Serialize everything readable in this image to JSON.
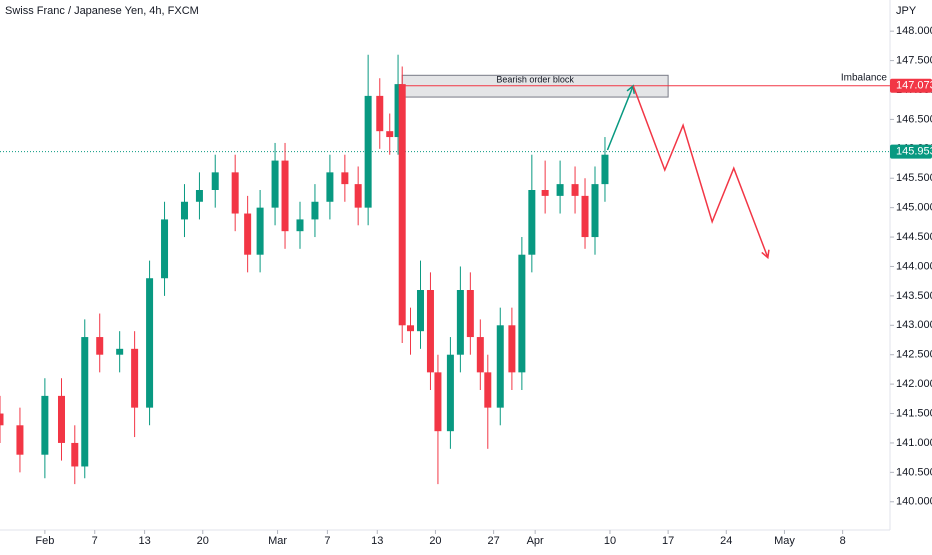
{
  "chart_data": {
    "type": "candlestick",
    "title": "Swiss Franc / Japanese Yen, 4h, FXCM",
    "y_unit": "JPY",
    "x": [
      26.6,
      29,
      32,
      34,
      35.6,
      36.8,
      38.6,
      41,
      42.8,
      44.6,
      46.4,
      48.8,
      50.6,
      52.5,
      54.9,
      56.4,
      57.9,
      59.7,
      60.9,
      62.7,
      64.5,
      66.3,
      68.1,
      69.7,
      70.9,
      72.3,
      73.5,
      74.5,
      75,
      76,
      77.2,
      78.4,
      79.3,
      80.8,
      82,
      83.2,
      84.4,
      85.3,
      86.8,
      88.2,
      89.4,
      90.6,
      92.2,
      94,
      95.8,
      97,
      98.2,
      99.4
    ],
    "open": [
      141.5,
      141.3,
      140.8,
      141.8,
      141.0,
      140.6,
      142.8,
      142.5,
      142.6,
      141.6,
      143.8,
      144.8,
      145.1,
      145.3,
      145.6,
      144.9,
      144.2,
      145.0,
      145.8,
      144.6,
      144.8,
      145.1,
      145.6,
      145.4,
      145.0,
      146.9,
      146.3,
      146.2,
      147.1,
      143.0,
      142.9,
      143.6,
      142.2,
      141.2,
      142.5,
      143.6,
      142.8,
      142.2,
      141.6,
      143.0,
      142.2,
      144.2,
      145.3,
      145.2,
      145.4,
      145.2,
      144.5,
      145.4
    ],
    "high": [
      141.8,
      141.6,
      142.1,
      142.1,
      141.3,
      143.1,
      143.2,
      142.9,
      142.9,
      144.1,
      145.1,
      145.4,
      145.6,
      145.9,
      145.9,
      145.2,
      145.3,
      146.1,
      146.1,
      145.1,
      145.4,
      145.9,
      145.9,
      145.7,
      147.6,
      147.2,
      146.6,
      147.6,
      147.4,
      143.3,
      144.1,
      143.9,
      142.5,
      142.8,
      144.0,
      143.9,
      143.1,
      142.5,
      143.3,
      143.3,
      144.5,
      145.9,
      145.8,
      145.8,
      145.7,
      145.5,
      145.7,
      146.2
    ],
    "low": [
      141.0,
      140.5,
      140.4,
      140.7,
      140.3,
      140.4,
      142.2,
      142.2,
      141.1,
      141.3,
      143.5,
      144.5,
      144.8,
      145.0,
      144.6,
      143.9,
      143.9,
      144.7,
      144.3,
      144.3,
      144.5,
      144.8,
      145.1,
      144.7,
      144.7,
      146.0,
      145.9,
      145.9,
      142.7,
      142.5,
      142.6,
      141.9,
      140.3,
      140.9,
      142.2,
      142.5,
      141.9,
      140.9,
      141.3,
      141.9,
      141.9,
      143.9,
      144.9,
      144.9,
      144.9,
      144.3,
      144.2,
      145.1
    ],
    "close": [
      141.3,
      140.8,
      141.8,
      141.0,
      140.6,
      142.8,
      142.5,
      142.6,
      141.6,
      143.8,
      144.8,
      145.1,
      145.3,
      145.6,
      144.9,
      144.2,
      145.0,
      145.8,
      144.6,
      144.8,
      145.1,
      145.6,
      145.4,
      145.0,
      146.9,
      146.3,
      146.2,
      147.1,
      143.0,
      142.9,
      143.6,
      142.2,
      141.2,
      142.5,
      143.6,
      142.8,
      142.2,
      141.6,
      143.0,
      142.2,
      144.2,
      145.3,
      145.2,
      145.4,
      145.2,
      144.5,
      145.4,
      145.9
    ],
    "up_color": "#089981",
    "down_color": "#f23645",
    "xlim": [
      26.6,
      133.7
    ],
    "ylim": [
      139.52,
      148.53
    ],
    "xticks": [
      {
        "value": 32,
        "label": "Feb"
      },
      {
        "value": 38,
        "label": "7"
      },
      {
        "value": 44,
        "label": "13"
      },
      {
        "value": 51,
        "label": "20"
      },
      {
        "value": 60,
        "label": "Mar"
      },
      {
        "value": 66,
        "label": "7"
      },
      {
        "value": 72,
        "label": "13"
      },
      {
        "value": 79,
        "label": "20"
      },
      {
        "value": 86,
        "label": "27"
      },
      {
        "value": 91,
        "label": "Apr"
      },
      {
        "value": 100,
        "label": "10"
      },
      {
        "value": 107,
        "label": "17"
      },
      {
        "value": 114,
        "label": "24"
      },
      {
        "value": 121,
        "label": "May"
      },
      {
        "value": 128,
        "label": "8"
      }
    ],
    "yticks": [
      {
        "value": 140,
        "label": "140.000"
      },
      {
        "value": 140.5,
        "label": "140.500"
      },
      {
        "value": 141,
        "label": "141.000"
      },
      {
        "value": 141.5,
        "label": "141.500"
      },
      {
        "value": 142,
        "label": "142.000"
      },
      {
        "value": 142.5,
        "label": "142.500"
      },
      {
        "value": 143,
        "label": "143.000"
      },
      {
        "value": 143.5,
        "label": "143.500"
      },
      {
        "value": 144,
        "label": "144.000"
      },
      {
        "value": 144.5,
        "label": "144.500"
      },
      {
        "value": 145,
        "label": "145.000"
      },
      {
        "value": 145.5,
        "label": "145.500"
      },
      {
        "value": 146,
        "label": "146.000"
      },
      {
        "value": 146.5,
        "label": "146.500"
      },
      {
        "value": 147,
        "label": "147.000"
      },
      {
        "value": 147.5,
        "label": "147.500"
      },
      {
        "value": 148,
        "label": "148.000"
      }
    ],
    "last_price": {
      "value": 145.953,
      "label": "145.953",
      "color": "#089981"
    },
    "imbalance": {
      "name": "Imbalance",
      "value": 147.073,
      "label": "147.073",
      "color": "#f23645"
    },
    "order_block": {
      "label": "Bearish order block",
      "xlim": [
        75,
        107
      ],
      "ylim": [
        146.88,
        147.25
      ]
    },
    "projection_up": {
      "color": "#089981",
      "x": [
        99.7,
        102.8
      ],
      "values": [
        145.98,
        147.07
      ]
    },
    "projection_down": {
      "color": "#f23645",
      "x": [
        102.8,
        106.6,
        108.8,
        112.3,
        114.9,
        119.0
      ],
      "values": [
        147.07,
        145.64,
        146.4,
        144.76,
        145.67,
        144.15
      ]
    }
  }
}
